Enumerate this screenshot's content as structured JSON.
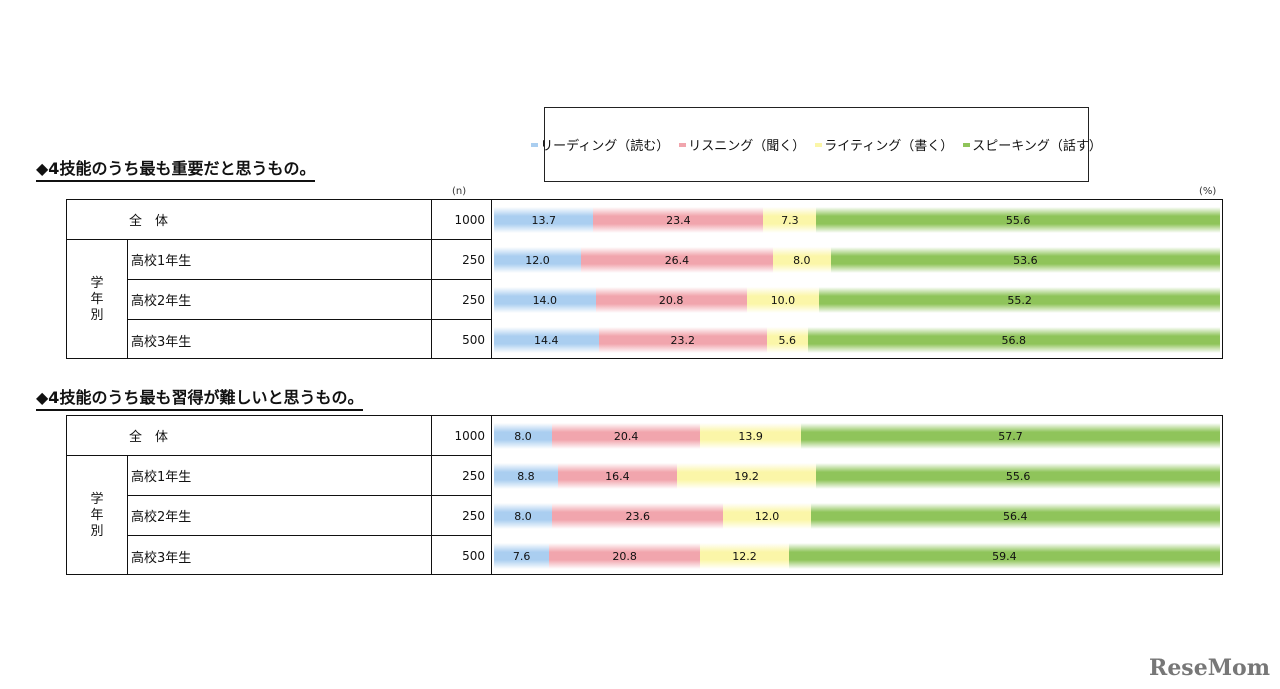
{
  "legend": [
    {
      "label": "リーディング（読む）",
      "color": "#aacef0"
    },
    {
      "label": "リスニング（聞く）",
      "color": "#f1a5ad"
    },
    {
      "label": "ライティング（書く）",
      "color": "#fbf6a8"
    },
    {
      "label": "スピーキング（話す）",
      "color": "#8fc45a"
    }
  ],
  "unit_n": "(n)",
  "unit_pct": "(%)",
  "watermark": "ReseMom",
  "chart_data": [
    {
      "type": "bar",
      "stacked": true,
      "orientation": "horizontal",
      "title": "◆4技能のうち最も重要だと思うもの。",
      "group_label": "学年別",
      "categories": [
        "全　体",
        "高校1年生",
        "高校2年生",
        "高校3年生"
      ],
      "n": [
        "1000",
        "250",
        "250",
        "500"
      ],
      "series": [
        {
          "name": "リーディング（読む）",
          "values": [
            13.7,
            12.0,
            14.0,
            14.4
          ]
        },
        {
          "name": "リスニング（聞く）",
          "values": [
            23.4,
            26.4,
            20.8,
            23.2
          ]
        },
        {
          "name": "ライティング（書く）",
          "values": [
            7.3,
            8.0,
            10.0,
            5.6
          ]
        },
        {
          "name": "スピーキング（話す）",
          "values": [
            55.6,
            53.6,
            55.2,
            56.8
          ]
        }
      ],
      "xlim": [
        0,
        100
      ]
    },
    {
      "type": "bar",
      "stacked": true,
      "orientation": "horizontal",
      "title": "◆4技能のうち最も習得が難しいと思うもの。",
      "group_label": "学年別",
      "categories": [
        "全　体",
        "高校1年生",
        "高校2年生",
        "高校3年生"
      ],
      "n": [
        "1000",
        "250",
        "250",
        "500"
      ],
      "series": [
        {
          "name": "リーディング（読む）",
          "values": [
            8.0,
            8.8,
            8.0,
            7.6
          ]
        },
        {
          "name": "リスニング（聞く）",
          "values": [
            20.4,
            16.4,
            23.6,
            20.8
          ]
        },
        {
          "name": "ライティング（書く）",
          "values": [
            13.9,
            19.2,
            12.0,
            12.2
          ]
        },
        {
          "name": "スピーキング（話す）",
          "values": [
            57.7,
            55.6,
            56.4,
            59.4
          ]
        }
      ],
      "xlim": [
        0,
        100
      ]
    }
  ]
}
